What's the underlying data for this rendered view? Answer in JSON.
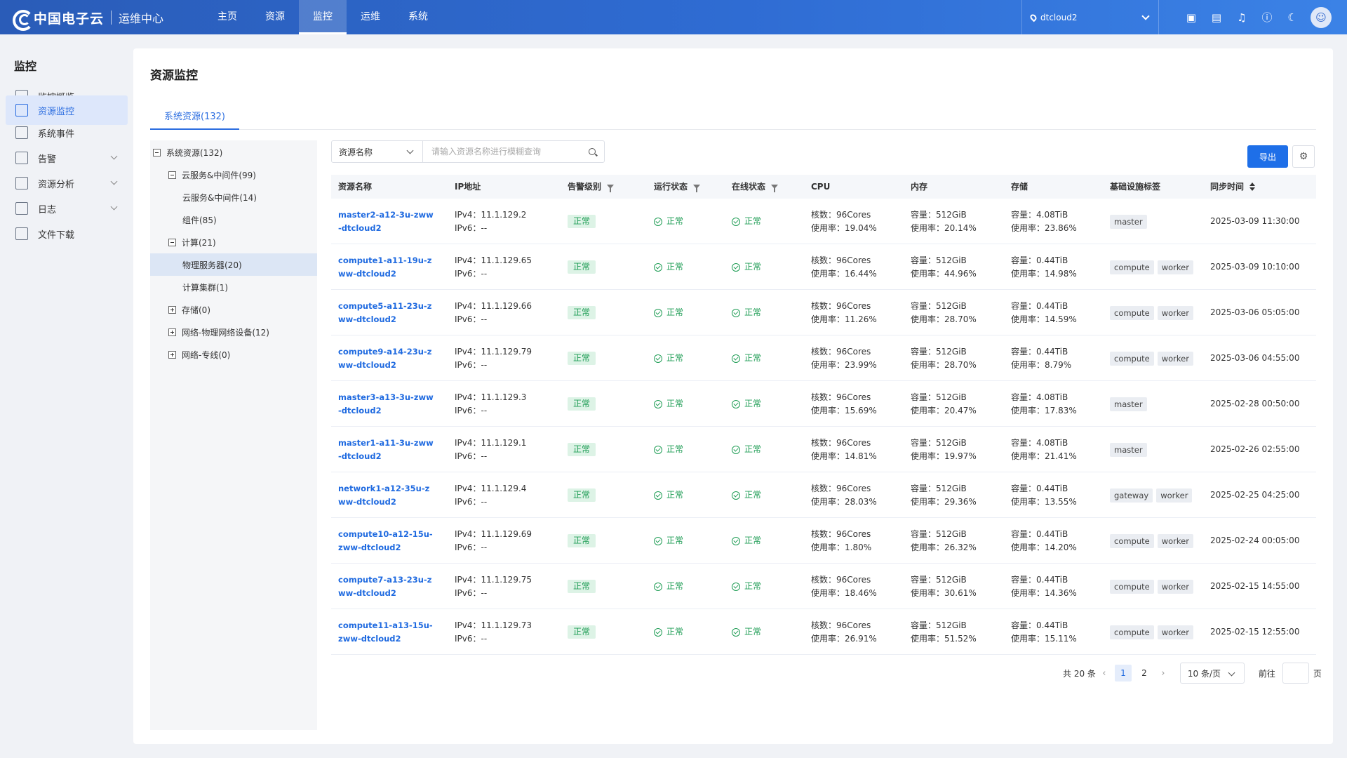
{
  "header": {
    "brand": "中国电子云",
    "subtitle": "运维中心",
    "nav": [
      "主页",
      "资源",
      "监控",
      "运维",
      "系统"
    ],
    "env": "dtcloud2"
  },
  "sidebar": {
    "title": "监控",
    "items": [
      "监控概览",
      "资源监控",
      "系统事件",
      "告警",
      "资源分析",
      "日志",
      "文件下载"
    ]
  },
  "page": {
    "title": "资源监控",
    "tab": "系统资源(132)"
  },
  "tree": [
    "系统资源(132)",
    "云服务&中间件(99)",
    "云服务&中间件(14)",
    "组件(85)",
    "计算(21)",
    "物理服务器(20)",
    "计算集群(1)",
    "存储(0)",
    "网络-物理网络设备(12)",
    "网络-专线(0)"
  ],
  "filter": {
    "select": "资源名称",
    "placeholder": "请输入资源名称进行模糊查询"
  },
  "export_label": "导出",
  "columns": [
    "资源名称",
    "IP地址",
    "告警级别",
    "运行状态",
    "在线状态",
    "CPU",
    "内存",
    "存储",
    "基础设施标签",
    "同步时间"
  ],
  "rows": [
    {
      "name": "master2-a12-3u-zww-dtcloud2",
      "ipv4": "IPv4：11.1.129.2",
      "ipv6": "IPv6：--",
      "alarm": "正常",
      "run": "正常",
      "online": "正常",
      "cpu1": "核数：96Cores",
      "cpu2": "使用率：19.04%",
      "mem1": "容量：512GiB",
      "mem2": "使用率：20.14%",
      "sto1": "容量：4.08TiB",
      "sto2": "使用率：23.86%",
      "tags": [
        "master"
      ],
      "time": "2025-03-09 11:30:00"
    },
    {
      "name": "compute1-a11-19u-zww-dtcloud2",
      "ipv4": "IPv4：11.1.129.65",
      "ipv6": "IPv6：--",
      "alarm": "正常",
      "run": "正常",
      "online": "正常",
      "cpu1": "核数：96Cores",
      "cpu2": "使用率：16.44%",
      "mem1": "容量：512GiB",
      "mem2": "使用率：44.96%",
      "sto1": "容量：0.44TiB",
      "sto2": "使用率：14.98%",
      "tags": [
        "compute",
        "worker"
      ],
      "time": "2025-03-09 10:10:00"
    },
    {
      "name": "compute5-a11-23u-zww-dtcloud2",
      "ipv4": "IPv4：11.1.129.66",
      "ipv6": "IPv6：--",
      "alarm": "正常",
      "run": "正常",
      "online": "正常",
      "cpu1": "核数：96Cores",
      "cpu2": "使用率：11.26%",
      "mem1": "容量：512GiB",
      "mem2": "使用率：28.70%",
      "sto1": "容量：0.44TiB",
      "sto2": "使用率：14.59%",
      "tags": [
        "compute",
        "worker"
      ],
      "time": "2025-03-06 05:05:00"
    },
    {
      "name": "compute9-a14-23u-zww-dtcloud2",
      "ipv4": "IPv4：11.1.129.79",
      "ipv6": "IPv6：--",
      "alarm": "正常",
      "run": "正常",
      "online": "正常",
      "cpu1": "核数：96Cores",
      "cpu2": "使用率：23.99%",
      "mem1": "容量：512GiB",
      "mem2": "使用率：28.70%",
      "sto1": "容量：0.44TiB",
      "sto2": "使用率：8.79%",
      "tags": [
        "compute",
        "worker"
      ],
      "time": "2025-03-06 04:55:00"
    },
    {
      "name": "master3-a13-3u-zww-dtcloud2",
      "ipv4": "IPv4：11.1.129.3",
      "ipv6": "IPv6：--",
      "alarm": "正常",
      "run": "正常",
      "online": "正常",
      "cpu1": "核数：96Cores",
      "cpu2": "使用率：15.69%",
      "mem1": "容量：512GiB",
      "mem2": "使用率：20.47%",
      "sto1": "容量：4.08TiB",
      "sto2": "使用率：17.83%",
      "tags": [
        "master"
      ],
      "time": "2025-02-28 00:50:00"
    },
    {
      "name": "master1-a11-3u-zww-dtcloud2",
      "ipv4": "IPv4：11.1.129.1",
      "ipv6": "IPv6：--",
      "alarm": "正常",
      "run": "正常",
      "online": "正常",
      "cpu1": "核数：96Cores",
      "cpu2": "使用率：14.81%",
      "mem1": "容量：512GiB",
      "mem2": "使用率：19.97%",
      "sto1": "容量：4.08TiB",
      "sto2": "使用率：21.41%",
      "tags": [
        "master"
      ],
      "time": "2025-02-26 02:55:00"
    },
    {
      "name": "network1-a12-35u-zww-dtcloud2",
      "ipv4": "IPv4：11.1.129.4",
      "ipv6": "IPv6：--",
      "alarm": "正常",
      "run": "正常",
      "online": "正常",
      "cpu1": "核数：96Cores",
      "cpu2": "使用率：28.03%",
      "mem1": "容量：512GiB",
      "mem2": "使用率：29.36%",
      "sto1": "容量：0.44TiB",
      "sto2": "使用率：13.55%",
      "tags": [
        "gateway",
        "worker"
      ],
      "time": "2025-02-25 04:25:00"
    },
    {
      "name": "compute10-a12-15u-zww-dtcloud2",
      "ipv4": "IPv4：11.1.129.69",
      "ipv6": "IPv6：--",
      "alarm": "正常",
      "run": "正常",
      "online": "正常",
      "cpu1": "核数：96Cores",
      "cpu2": "使用率：1.80%",
      "mem1": "容量：512GiB",
      "mem2": "使用率：26.32%",
      "sto1": "容量：0.44TiB",
      "sto2": "使用率：14.20%",
      "tags": [
        "compute",
        "worker"
      ],
      "time": "2025-02-24 00:05:00"
    },
    {
      "name": "compute7-a13-23u-zww-dtcloud2",
      "ipv4": "IPv4：11.1.129.75",
      "ipv6": "IPv6：--",
      "alarm": "正常",
      "run": "正常",
      "online": "正常",
      "cpu1": "核数：96Cores",
      "cpu2": "使用率：18.46%",
      "mem1": "容量：512GiB",
      "mem2": "使用率：30.61%",
      "sto1": "容量：0.44TiB",
      "sto2": "使用率：14.36%",
      "tags": [
        "compute",
        "worker"
      ],
      "time": "2025-02-15 14:55:00"
    },
    {
      "name": "compute11-a13-15u-zww-dtcloud2",
      "ipv4": "IPv4：11.1.129.73",
      "ipv6": "IPv6：--",
      "alarm": "正常",
      "run": "正常",
      "online": "正常",
      "cpu1": "核数：96Cores",
      "cpu2": "使用率：26.91%",
      "mem1": "容量：512GiB",
      "mem2": "使用率：51.52%",
      "sto1": "容量：0.44TiB",
      "sto2": "使用率：15.11%",
      "tags": [
        "compute",
        "worker"
      ],
      "time": "2025-02-15 12:55:00"
    }
  ],
  "pager": {
    "total": "共 20 条",
    "pages": [
      "1",
      "2"
    ],
    "size": "10 条/页",
    "goto": "前往",
    "page_unit": "页"
  }
}
